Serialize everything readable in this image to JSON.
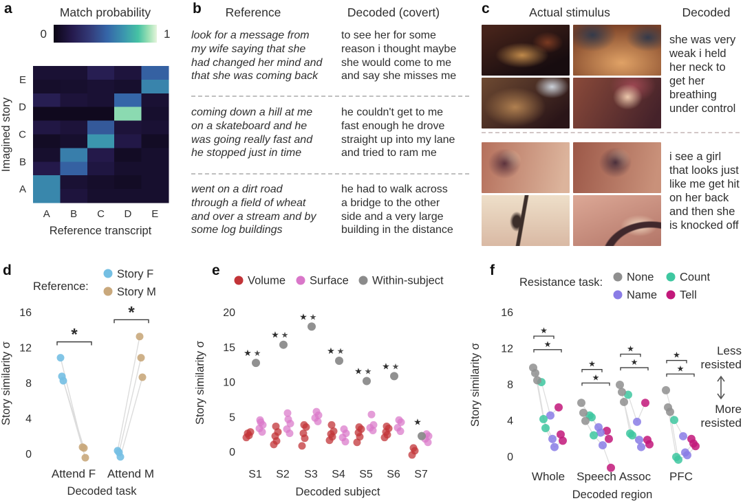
{
  "figure": {
    "background": "#ffffff",
    "text_color": "#2e2e2e"
  },
  "panels": {
    "a": {
      "label": "a"
    },
    "b": {
      "label": "b",
      "col1_header": "Reference",
      "col2_header": "Decoded (covert)",
      "rows": [
        {
          "reference": "look for a message from\nmy wife saying that she\nhad changed her mind and\nthat she was coming back",
          "decoded": "to see her for some\nreason i thought maybe\nshe would come to me\nand say she misses me"
        },
        {
          "reference": "coming down a hill at me\non a skateboard and he\nwas going really fast and\nhe stopped just in time",
          "decoded": "he couldn't get to me\nfast enough he drove\nstraight up into my lane\nand tried to ram me"
        },
        {
          "reference": "went on a dirt road\nthrough a field of wheat\nand over a stream and by\nsome log buildings",
          "decoded": "he had to walk across\na bridge to the other\nside and a very large\nbuilding in the distance"
        }
      ]
    },
    "c": {
      "label": "c",
      "col1_header": "Actual stimulus",
      "col2_header": "Decoded",
      "groups": [
        {
          "decoded": "she was very\nweak i held\nher neck to\nget her\nbreathing\nunder control",
          "frames": [
            {
              "name": "dark-cluttered-interior",
              "palette": [
                "#170c0f",
                "#45231a",
                "#c08a4a",
                "#7a3a22"
              ]
            },
            {
              "name": "creature-on-chest-closeup",
              "palette": [
                "#7a4026",
                "#e0a266",
                "#c97a4a",
                "#343a4a"
              ]
            },
            {
              "name": "creature-held-by-bandaged-hand",
              "palette": [
                "#2a1518",
                "#6e4a32",
                "#ccd2da",
                "#b08050"
              ]
            },
            {
              "name": "red-haired-girl-with-creature",
              "palette": [
                "#45222a",
                "#8a4a3a",
                "#ecc8ac",
                "#9c4752"
              ]
            }
          ]
        },
        {
          "decoded": "i see a girl\nthat looks just\nlike me get hit\non her back\nand then she\nis knocked off",
          "frames": [
            {
              "name": "girl-face-sunset-left",
              "palette": [
                "#dcb49c",
                "#b5705c",
                "#e8c8a8",
                "#5c323c"
              ]
            },
            {
              "name": "girl-face-sunset-center",
              "palette": [
                "#c9917a",
                "#9c5848",
                "#ecc0a0",
                "#4a2e3a"
              ]
            },
            {
              "name": "figure-hanging-on-cable",
              "palette": [
                "#eedfc9",
                "#d9b9a4",
                "#3c2e2a",
                "#8a6e58"
              ]
            },
            {
              "name": "dark-arc-over-pink-sky",
              "palette": [
                "#dca896",
                "#b5786a",
                "#40282c",
                "#f0d8c0"
              ]
            }
          ]
        }
      ]
    },
    "d": {
      "label": "d"
    },
    "e": {
      "label": "e"
    },
    "f": {
      "label": "f"
    }
  },
  "chart_data": [
    {
      "id": "a",
      "type": "heatmap",
      "title": "Match probability",
      "colorbar_min": "0",
      "colorbar_max": "1",
      "xlabel": "Reference transcript",
      "ylabel": "Imagined story",
      "col_labels": [
        "A",
        "B",
        "C",
        "D",
        "E"
      ],
      "row_group_labels": [
        "E",
        "D",
        "C",
        "B",
        "A"
      ],
      "colormap": [
        [
          0,
          "#0c0615"
        ],
        [
          0.18,
          "#251a4d"
        ],
        [
          0.35,
          "#333a78"
        ],
        [
          0.52,
          "#3566a8"
        ],
        [
          0.68,
          "#3b96ae"
        ],
        [
          0.82,
          "#46c2a4"
        ],
        [
          0.92,
          "#9ce0b4"
        ],
        [
          1,
          "#e6f5dd"
        ]
      ],
      "values": [
        [
          0.1,
          0.1,
          0.2,
          0.13,
          0.5
        ],
        [
          0.07,
          0.08,
          0.1,
          0.08,
          0.62
        ],
        [
          0.2,
          0.12,
          0.1,
          0.52,
          0.1
        ],
        [
          0.03,
          0.03,
          0.03,
          0.9,
          0.08
        ],
        [
          0.15,
          0.12,
          0.47,
          0.12,
          0.1
        ],
        [
          0.05,
          0.08,
          0.68,
          0.16,
          0.05
        ],
        [
          0.08,
          0.6,
          0.17,
          0.05,
          0.08
        ],
        [
          0.17,
          0.5,
          0.14,
          0.08,
          0.08
        ],
        [
          0.63,
          0.1,
          0.07,
          0.05,
          0.08
        ],
        [
          0.63,
          0.13,
          0.08,
          0.08,
          0.08
        ]
      ]
    },
    {
      "id": "d",
      "type": "paired-dot",
      "legend_title": "Reference:",
      "series": [
        {
          "name": "Story F",
          "color": "#74bfe3"
        },
        {
          "name": "Story M",
          "color": "#c9a87c"
        }
      ],
      "ylabel": "Story similarity σ",
      "xlabel": "Decoded task",
      "yticks": [
        0,
        4,
        8,
        12,
        16
      ],
      "ylim": [
        -1.5,
        17
      ],
      "categories": [
        "Attend F",
        "Attend M"
      ],
      "pairs": {
        "Attend F": [
          [
            10.9,
            0.8
          ],
          [
            8.8,
            0.7
          ],
          [
            8.3,
            -0.4
          ]
        ],
        "Attend M": [
          [
            0.4,
            13.3
          ],
          [
            0.2,
            10.9
          ],
          [
            -0.3,
            8.7
          ]
        ]
      },
      "sig": [
        {
          "category": "Attend F",
          "y": 12.7,
          "star": "*"
        },
        {
          "category": "Attend M",
          "y": 15.2,
          "star": "*"
        }
      ],
      "sig_color": "#2a2a2a",
      "line_color": "#dcdcdc"
    },
    {
      "id": "e",
      "type": "strip",
      "legend": [
        {
          "name": "Volume",
          "color": "#c23438"
        },
        {
          "name": "Surface",
          "color": "#d977c9"
        },
        {
          "name": "Within-subject",
          "color": "#8b8b8b"
        }
      ],
      "ylabel": "Story similarity σ",
      "xlabel": "Decoded subject",
      "yticks": [
        0,
        5,
        10,
        15,
        20
      ],
      "ylim": [
        -1,
        21
      ],
      "categories": [
        "S1",
        "S2",
        "S3",
        "S4",
        "S5",
        "S6",
        "S7"
      ],
      "volume": [
        [
          2.1,
          2.4,
          2.7,
          2.9
        ],
        [
          1.1,
          1.6,
          2.3,
          2.9,
          3.7
        ],
        [
          0.9,
          2.0,
          2.7,
          3.6,
          3.9
        ],
        [
          1.7,
          2.2,
          2.6,
          3.0,
          3.9
        ],
        [
          1.4,
          2.2,
          2.8,
          3.3,
          3.6
        ],
        [
          2.1,
          2.5,
          2.9,
          3.4,
          3.7
        ],
        [
          -0.4,
          0.2,
          0.6
        ]
      ],
      "surface": [
        [
          2.9,
          3.4,
          3.9,
          4.3,
          4.6
        ],
        [
          2.7,
          3.3,
          4.1,
          4.7,
          5.6
        ],
        [
          4.4,
          4.9,
          5.3,
          5.8
        ],
        [
          1.5,
          2.1,
          2.7,
          3.3
        ],
        [
          3.1,
          3.5,
          3.9,
          5.4
        ],
        [
          3.0,
          3.5,
          4.3,
          4.6
        ],
        [
          1.4,
          1.9,
          2.3,
          2.6
        ]
      ],
      "within": [
        12.8,
        15.4,
        18.0,
        13.1,
        10.2,
        10.9,
        2.3
      ],
      "stars_per_subject": [
        2,
        2,
        2,
        2,
        2,
        2,
        1
      ],
      "star_colors": [
        "#9e2b3d",
        "#ecaac8"
      ],
      "star_glyph": "★"
    },
    {
      "id": "f",
      "type": "dot-line",
      "legend_title": "Resistance task:",
      "legend": [
        {
          "name": "None",
          "color": "#8f8f8f"
        },
        {
          "name": "Count",
          "color": "#3ec7a0"
        },
        {
          "name": "Name",
          "color": "#8a7ce6"
        },
        {
          "name": "Tell",
          "color": "#c2187a"
        }
      ],
      "ylabel": "Story similarity σ",
      "xlabel": "Decoded region",
      "yticks": [
        0,
        4,
        8,
        12,
        16
      ],
      "ylim": [
        -1.5,
        17
      ],
      "categories": [
        "Whole",
        "Speech",
        "Assoc",
        "PFC"
      ],
      "subjects": {
        "Whole": [
          [
            9.9,
            8.3,
            4.6,
            5.5
          ],
          [
            9.3,
            4.2,
            2.0,
            2.5
          ],
          [
            8.5,
            3.2,
            1.1,
            1.8
          ]
        ],
        "Speech": [
          [
            6.0,
            4.6,
            3.3,
            2.9
          ],
          [
            4.9,
            4.4,
            2.7,
            2.0
          ],
          [
            4.0,
            2.4,
            1.3,
            -1.2
          ]
        ],
        "Assoc": [
          [
            8.0,
            6.9,
            3.9,
            6.0
          ],
          [
            7.2,
            2.6,
            1.9,
            1.9
          ],
          [
            6.1,
            2.4,
            1.1,
            1.4
          ]
        ],
        "PFC": [
          [
            7.4,
            4.1,
            2.3,
            2.0
          ],
          [
            5.5,
            0.0,
            0.5,
            1.5
          ],
          [
            5.0,
            -0.3,
            0.2,
            1.2
          ]
        ]
      },
      "sig": {
        "Whole": {
          "purple": 13.4,
          "red": 11.9
        },
        "Speech": {
          "purple": 9.7,
          "red": 8.2
        },
        "Assoc": {
          "purple": 11.4,
          "red": 9.9
        },
        "PFC": {
          "purple": 10.7,
          "red": 9.2
        }
      },
      "sig_colors": {
        "purple": "#7b6fe0",
        "red": "#b5304d"
      },
      "star_glyph": "★",
      "annotations": {
        "less": "Less\nresisted",
        "more": "More\nresisted"
      },
      "line_color": "#dedede"
    }
  ]
}
